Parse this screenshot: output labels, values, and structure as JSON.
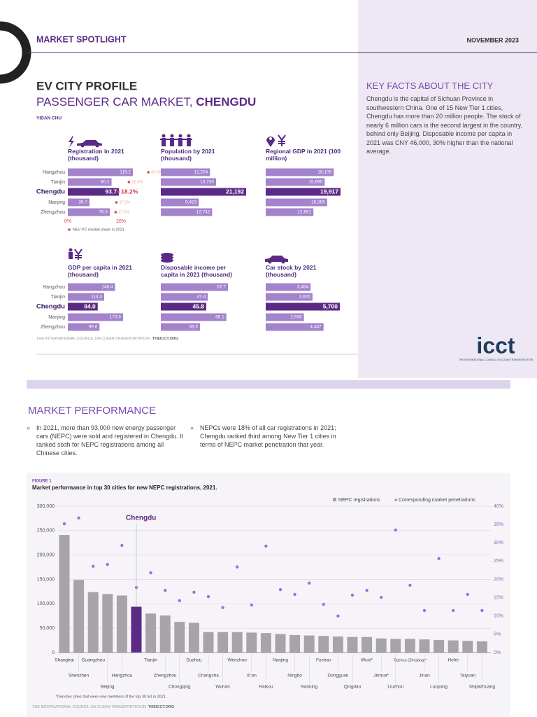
{
  "header": {
    "section": "MARKET SPOTLIGHT",
    "date": "NOVEMBER 2023"
  },
  "profile": {
    "title": "EV CITY PROFILE",
    "subtitle_prefix": "PASSENGER CAR MARKET, ",
    "subtitle_city": "CHENGDU",
    "author": "YIDAN CHU",
    "categories": [
      "Hangzhou",
      "Tianjin",
      "Chengdu",
      "Nanjing",
      "Zhengzhou"
    ],
    "panels": [
      {
        "title": "Registration in 2021 (thousand)",
        "values": [
          119.2,
          80.2,
          93.7,
          39.7,
          76.9
        ],
        "share": {
          "values": [
            29.5,
            22.2,
            18.2,
            17.5,
            17.2
          ],
          "value_labels": [
            "29.5%",
            "22.2%",
            "18.2%",
            "17.5%",
            "17.2%"
          ],
          "ticks": [
            {
              "value": 0,
              "label": "0%"
            },
            {
              "value": 20,
              "label": "20%"
            }
          ],
          "legend": "NEV PC market share in 2021"
        }
      },
      {
        "title": "Population by 2021 (thousand)",
        "values": [
          12204,
          13730,
          21192,
          9423,
          12742
        ],
        "value_labels": [
          "12,204",
          "13,730",
          "21,192",
          "9,423",
          "12,742"
        ]
      },
      {
        "title": "Regional GDP in 2021 (100 million)",
        "values": [
          18109,
          15695,
          19917,
          16355,
          12691
        ],
        "value_labels": [
          "18,109",
          "15,695",
          "19,917",
          "16,355",
          "12,691"
        ]
      },
      {
        "title": "GDP  per capita in 2021 (thousand)",
        "values": [
          148.4,
          114.3,
          94,
          173.6,
          99.6
        ],
        "value_labels": [
          "148.4",
          "114.3",
          "94.0",
          "173.6",
          "99.6"
        ]
      },
      {
        "title": "Disposable income per capita in 2021 (thousand)",
        "values": [
          67.7,
          47.4,
          45.8,
          66.1,
          39.5
        ]
      },
      {
        "title": "Car stock by 2021 (thousand)",
        "values": [
          3454,
          3600,
          5700,
          2936,
          4447
        ],
        "value_labels": [
          "3,454",
          "3,600",
          "5,700",
          "2,936",
          "4,447"
        ]
      }
    ],
    "source": "THE INTERNATIONAL COUNCIL ON CLEAN TRANSPORTATION",
    "source_link": "THEICCT.ORG"
  },
  "key_facts": {
    "title": "KEY FACTS ABOUT THE CITY",
    "text": "Chengdu is the capital of Sichuan Province in southwestern China. One of 15 New Tier 1 cities, Chengdu has more than 20 million people. The stock of nearly 6 million cars is the second largest in the country, behind only Beijing. Disposable income per capita in 2021 was CNY 46,000, 30% higher than the national average."
  },
  "logo": {
    "text": "icct",
    "tagline": "THE INTERNATIONAL COUNCIL ON CLEAN TRANSPORTATION"
  },
  "market_performance": {
    "title": "MARKET PERFORMANCE",
    "bullets": [
      "In 2021, more than 93,000 new energy passenger cars (NEPC) were sold and registered in Chengdu. It ranked sixth for NEPC registrations among all Chinese cities.",
      "NEPCs were 18% of all car registrations in 2021; Chengdu ranked third among New Tier 1 cities in terms of NEPC market penetration that year."
    ]
  },
  "figure": {
    "label": "FIGURE 1",
    "chart_data": {
      "type": "bar",
      "title": "Market performance in top 30 cities for new NEPC registrations, 2021.",
      "categories": [
        "Shanghai",
        "Shenzhen",
        "Guangzhou",
        "Beijing",
        "Hangzhou",
        "Chengdu",
        "Tianjin",
        "Zhengzhou",
        "Chongqing",
        "Suzhou",
        "Changsha",
        "Wuhan",
        "Wenzhou",
        "Xi'an",
        "Haikou",
        "Nanjing",
        "Ningbo",
        "Nanning",
        "Foshan",
        "Dongguan",
        "Qingdao",
        "Wuxi*",
        "Jinhua*",
        "Liuzhou",
        "Taizhou (Zhejiang)*",
        "Jinan",
        "Luoyang",
        "Hefei",
        "Taiyuan",
        "Shijiazhuang"
      ],
      "series": [
        {
          "name": "NEPC registrations",
          "color": "#a6a3aa",
          "highlight_color": "#5b2a86",
          "values": [
            241000,
            149000,
            124000,
            120000,
            117000,
            94000,
            80000,
            76000,
            63000,
            61000,
            42000,
            42000,
            42000,
            41000,
            40000,
            38000,
            36000,
            35000,
            34000,
            33000,
            32000,
            32000,
            29000,
            28000,
            28000,
            27000,
            26000,
            25000,
            24000,
            23000
          ]
        },
        {
          "name": "Corresponding market penetrations",
          "color": "#a36fd6",
          "axis": "y2",
          "values": [
            35.2,
            36.8,
            23.6,
            24.1,
            29.3,
            17.8,
            21.8,
            17.0,
            14.2,
            16.5,
            15.3,
            12.3,
            23.4,
            13.0,
            29.1,
            17.2,
            15.9,
            19.0,
            13.2,
            10.0,
            15.7,
            17.0,
            15.1,
            33.5,
            18.4,
            11.5,
            25.7,
            11.5,
            15.9,
            11.5
          ]
        }
      ],
      "ylim": [
        0,
        300000
      ],
      "yticks": [
        0,
        {
          "value": 50000,
          "label": "50,000"
        },
        {
          "value": 100000,
          "label": "100,000"
        },
        {
          "value": 150000,
          "label": "150,000"
        },
        {
          "value": 200000,
          "label": "200,000"
        },
        {
          "value": 250000,
          "label": "250,000"
        },
        {
          "value": 300000,
          "label": "300,000"
        }
      ],
      "y2lim": [
        0,
        40
      ],
      "y2ticks": [
        {
          "value": 0,
          "label": "0%"
        },
        {
          "value": 5,
          "label": "5%"
        },
        {
          "value": 10,
          "label": "10%"
        },
        {
          "value": 15,
          "label": "15%"
        },
        {
          "value": 20,
          "label": "20%"
        },
        {
          "value": 25,
          "label": "25%"
        },
        {
          "value": 30,
          "label": "30%"
        },
        {
          "value": 35,
          "label": "35%"
        },
        {
          "value": 40,
          "label": "40%"
        }
      ],
      "grid": true,
      "legend": "top-right"
    },
    "footnote": "*Denotes cities that were new members of the top 30 list in 2021.",
    "source": "THE INTERNATIONAL COUNCIL ON CLEAN TRANSPORTATION",
    "source_link": "THEICCT.ORG"
  }
}
